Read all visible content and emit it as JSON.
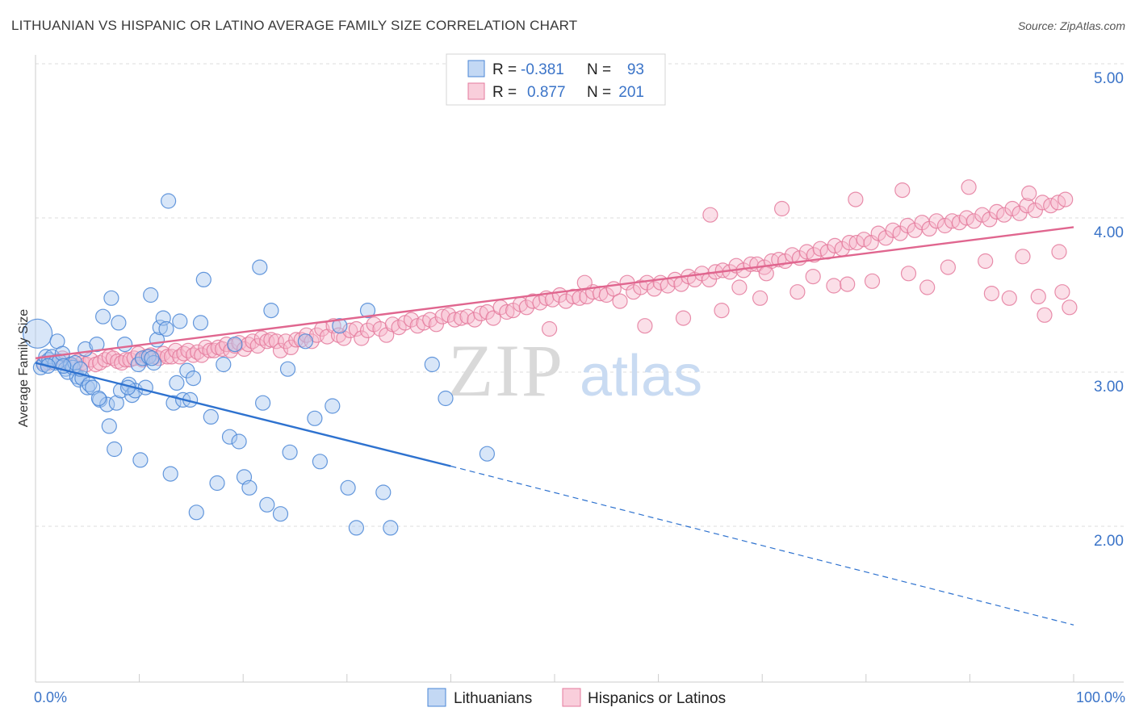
{
  "header": {
    "title": "LITHUANIAN VS HISPANIC OR LATINO AVERAGE FAMILY SIZE CORRELATION CHART",
    "source": "Source: ZipAtlas.com"
  },
  "watermark": {
    "zip": "ZIP",
    "atlas": "atlas"
  },
  "colors": {
    "blue_fill": "#a9c8ef",
    "blue_stroke": "#4a86d6",
    "blue_line": "#2e72cf",
    "pink_fill": "#f6b9cc",
    "pink_stroke": "#e47a9c",
    "pink_line": "#e0668f",
    "tick_text": "#3b74c8",
    "grid": "#dddddd"
  },
  "legend": {
    "rows": [
      {
        "r_label": "R =",
        "r_value": "-0.381",
        "n_label": "N =",
        "n_value": "93"
      },
      {
        "r_label": "R =",
        "r_value": "0.877",
        "n_label": "N =",
        "n_value": "201"
      }
    ]
  },
  "chart_data": {
    "type": "scatter",
    "ylabel": "Average Family Size",
    "xlim": [
      0,
      100
    ],
    "ylim": [
      1.05,
      5.1
    ],
    "x_tick_labels": [
      "0.0%",
      "100.0%"
    ],
    "y_ticks": [
      {
        "value": 2.0,
        "label": "2.00"
      },
      {
        "value": 3.0,
        "label": "3.00"
      },
      {
        "value": 4.0,
        "label": "4.00"
      },
      {
        "value": 5.0,
        "label": "5.00"
      }
    ],
    "grid": "horizontal dashed",
    "legend_position": "top-center",
    "series": [
      {
        "name": "Lithuanians",
        "color": "#4a86d6",
        "trend": {
          "x0": 0,
          "y0": 3.06,
          "x1": 40,
          "y1": 2.39,
          "dashed_to_x": 100,
          "dashed_to_y": 1.36
        },
        "points": [
          [
            0.2,
            3.25
          ],
          [
            0.5,
            3.03
          ],
          [
            0.8,
            3.05
          ],
          [
            1.0,
            3.1
          ],
          [
            1.3,
            3.08
          ],
          [
            1.6,
            3.1
          ],
          [
            1.9,
            3.06
          ],
          [
            2.1,
            3.2
          ],
          [
            2.3,
            3.07
          ],
          [
            2.6,
            3.12
          ],
          [
            2.9,
            3.02
          ],
          [
            3.1,
            3.0
          ],
          [
            3.4,
            3.05
          ],
          [
            3.6,
            3.03
          ],
          [
            3.8,
            3.06
          ],
          [
            4.0,
            2.97
          ],
          [
            4.2,
            2.95
          ],
          [
            4.5,
            2.96
          ],
          [
            4.8,
            3.15
          ],
          [
            5.0,
            2.9
          ],
          [
            5.2,
            2.92
          ],
          [
            5.5,
            2.9
          ],
          [
            5.9,
            3.18
          ],
          [
            6.2,
            2.82
          ],
          [
            6.5,
            3.36
          ],
          [
            6.9,
            2.79
          ],
          [
            7.1,
            2.65
          ],
          [
            7.3,
            3.48
          ],
          [
            7.6,
            2.5
          ],
          [
            7.8,
            2.8
          ],
          [
            8.0,
            3.32
          ],
          [
            8.2,
            2.88
          ],
          [
            8.6,
            3.18
          ],
          [
            9.0,
            2.92
          ],
          [
            9.3,
            2.85
          ],
          [
            9.6,
            2.88
          ],
          [
            9.9,
            3.05
          ],
          [
            10.1,
            2.43
          ],
          [
            10.3,
            3.09
          ],
          [
            10.6,
            2.9
          ],
          [
            10.9,
            3.1
          ],
          [
            11.1,
            3.5
          ],
          [
            11.4,
            3.06
          ],
          [
            11.7,
            3.21
          ],
          [
            12.0,
            3.29
          ],
          [
            12.3,
            3.35
          ],
          [
            12.6,
            3.28
          ],
          [
            12.8,
            4.11
          ],
          [
            13.0,
            2.34
          ],
          [
            13.3,
            2.8
          ],
          [
            13.6,
            2.93
          ],
          [
            13.9,
            3.33
          ],
          [
            14.2,
            2.82
          ],
          [
            14.6,
            3.01
          ],
          [
            14.9,
            2.82
          ],
          [
            15.2,
            2.96
          ],
          [
            15.5,
            2.09
          ],
          [
            15.9,
            3.32
          ],
          [
            16.2,
            3.6
          ],
          [
            16.9,
            2.71
          ],
          [
            17.5,
            2.28
          ],
          [
            18.1,
            3.05
          ],
          [
            18.7,
            2.58
          ],
          [
            19.2,
            3.18
          ],
          [
            19.6,
            2.55
          ],
          [
            20.1,
            2.32
          ],
          [
            20.6,
            2.25
          ],
          [
            21.6,
            3.68
          ],
          [
            21.9,
            2.8
          ],
          [
            22.3,
            2.14
          ],
          [
            22.7,
            3.4
          ],
          [
            23.6,
            2.08
          ],
          [
            24.5,
            2.48
          ],
          [
            26.0,
            3.2
          ],
          [
            26.9,
            2.7
          ],
          [
            27.4,
            2.42
          ],
          [
            28.6,
            2.78
          ],
          [
            29.3,
            3.3
          ],
          [
            30.1,
            2.25
          ],
          [
            30.9,
            1.99
          ],
          [
            32.0,
            3.4
          ],
          [
            33.5,
            2.22
          ],
          [
            34.2,
            1.99
          ],
          [
            38.2,
            3.05
          ],
          [
            39.5,
            2.83
          ],
          [
            43.5,
            2.47
          ],
          [
            24.3,
            3.02
          ],
          [
            2.7,
            3.04
          ],
          [
            1.2,
            3.04
          ],
          [
            4.3,
            3.02
          ],
          [
            6.1,
            2.83
          ],
          [
            8.9,
            2.9
          ],
          [
            11.2,
            3.09
          ]
        ]
      },
      {
        "name": "Hispanics or Latinos",
        "color": "#e47a9c",
        "trend": {
          "x0": 0,
          "y0": 3.09,
          "x1": 100,
          "y1": 3.94
        },
        "points": [
          [
            0.8,
            3.06
          ],
          [
            1.3,
            3.06
          ],
          [
            2.0,
            3.07
          ],
          [
            2.6,
            3.09
          ],
          [
            3.3,
            3.05
          ],
          [
            3.7,
            3.04
          ],
          [
            4.1,
            3.07
          ],
          [
            4.5,
            3.06
          ],
          [
            4.9,
            3.05
          ],
          [
            5.3,
            3.08
          ],
          [
            5.8,
            3.05
          ],
          [
            6.2,
            3.06
          ],
          [
            6.7,
            3.08
          ],
          [
            7.1,
            3.1
          ],
          [
            7.5,
            3.09
          ],
          [
            7.9,
            3.07
          ],
          [
            8.3,
            3.06
          ],
          [
            8.7,
            3.08
          ],
          [
            9.1,
            3.08
          ],
          [
            9.5,
            3.09
          ],
          [
            9.9,
            3.12
          ],
          [
            10.3,
            3.08
          ],
          [
            10.7,
            3.1
          ],
          [
            11.1,
            3.11
          ],
          [
            11.5,
            3.1
          ],
          [
            11.9,
            3.09
          ],
          [
            12.3,
            3.12
          ],
          [
            12.7,
            3.1
          ],
          [
            13.1,
            3.1
          ],
          [
            13.5,
            3.14
          ],
          [
            13.9,
            3.1
          ],
          [
            14.3,
            3.12
          ],
          [
            14.7,
            3.14
          ],
          [
            15.2,
            3.11
          ],
          [
            15.6,
            3.13
          ],
          [
            16.0,
            3.11
          ],
          [
            16.4,
            3.16
          ],
          [
            16.8,
            3.14
          ],
          [
            17.2,
            3.14
          ],
          [
            17.6,
            3.16
          ],
          [
            18.0,
            3.15
          ],
          [
            18.4,
            3.18
          ],
          [
            18.8,
            3.14
          ],
          [
            19.2,
            3.17
          ],
          [
            19.6,
            3.19
          ],
          [
            20.1,
            3.15
          ],
          [
            20.5,
            3.18
          ],
          [
            20.9,
            3.2
          ],
          [
            21.4,
            3.17
          ],
          [
            21.8,
            3.22
          ],
          [
            22.3,
            3.2
          ],
          [
            22.7,
            3.21
          ],
          [
            23.2,
            3.2
          ],
          [
            23.6,
            3.14
          ],
          [
            24.1,
            3.2
          ],
          [
            24.6,
            3.16
          ],
          [
            25.1,
            3.21
          ],
          [
            25.6,
            3.21
          ],
          [
            26.1,
            3.24
          ],
          [
            26.6,
            3.2
          ],
          [
            27.1,
            3.24
          ],
          [
            27.6,
            3.28
          ],
          [
            28.1,
            3.23
          ],
          [
            28.7,
            3.3
          ],
          [
            29.2,
            3.24
          ],
          [
            29.7,
            3.22
          ],
          [
            30.3,
            3.27
          ],
          [
            30.9,
            3.28
          ],
          [
            31.4,
            3.22
          ],
          [
            32.0,
            3.27
          ],
          [
            32.6,
            3.31
          ],
          [
            33.2,
            3.28
          ],
          [
            33.8,
            3.24
          ],
          [
            34.4,
            3.31
          ],
          [
            35.0,
            3.29
          ],
          [
            35.6,
            3.32
          ],
          [
            36.2,
            3.34
          ],
          [
            36.8,
            3.3
          ],
          [
            37.4,
            3.32
          ],
          [
            38.0,
            3.34
          ],
          [
            38.6,
            3.31
          ],
          [
            39.2,
            3.36
          ],
          [
            39.8,
            3.37
          ],
          [
            40.4,
            3.34
          ],
          [
            41.0,
            3.35
          ],
          [
            41.6,
            3.36
          ],
          [
            42.3,
            3.34
          ],
          [
            42.9,
            3.38
          ],
          [
            43.5,
            3.39
          ],
          [
            44.1,
            3.35
          ],
          [
            44.8,
            3.42
          ],
          [
            45.4,
            3.39
          ],
          [
            46.0,
            3.4
          ],
          [
            46.7,
            3.44
          ],
          [
            47.3,
            3.42
          ],
          [
            47.9,
            3.46
          ],
          [
            48.6,
            3.45
          ],
          [
            49.2,
            3.48
          ],
          [
            49.8,
            3.47
          ],
          [
            50.5,
            3.5
          ],
          [
            51.1,
            3.46
          ],
          [
            51.8,
            3.49
          ],
          [
            52.4,
            3.48
          ],
          [
            53.1,
            3.49
          ],
          [
            53.7,
            3.52
          ],
          [
            54.4,
            3.51
          ],
          [
            55.0,
            3.5
          ],
          [
            55.7,
            3.54
          ],
          [
            56.3,
            3.46
          ],
          [
            57.0,
            3.58
          ],
          [
            57.6,
            3.52
          ],
          [
            58.3,
            3.55
          ],
          [
            58.9,
            3.58
          ],
          [
            59.6,
            3.54
          ],
          [
            60.2,
            3.58
          ],
          [
            60.9,
            3.56
          ],
          [
            61.6,
            3.6
          ],
          [
            62.2,
            3.57
          ],
          [
            62.9,
            3.62
          ],
          [
            63.5,
            3.6
          ],
          [
            64.2,
            3.64
          ],
          [
            64.9,
            3.6
          ],
          [
            65.5,
            3.65
          ],
          [
            66.2,
            3.66
          ],
          [
            66.9,
            3.65
          ],
          [
            67.5,
            3.69
          ],
          [
            68.2,
            3.66
          ],
          [
            68.9,
            3.7
          ],
          [
            69.5,
            3.7
          ],
          [
            70.2,
            3.68
          ],
          [
            70.9,
            3.72
          ],
          [
            71.6,
            3.73
          ],
          [
            72.2,
            3.72
          ],
          [
            72.9,
            3.76
          ],
          [
            73.6,
            3.74
          ],
          [
            74.3,
            3.78
          ],
          [
            75.0,
            3.76
          ],
          [
            75.6,
            3.8
          ],
          [
            76.3,
            3.78
          ],
          [
            77.0,
            3.82
          ],
          [
            77.7,
            3.8
          ],
          [
            78.4,
            3.84
          ],
          [
            79.1,
            3.84
          ],
          [
            79.8,
            3.86
          ],
          [
            80.5,
            3.84
          ],
          [
            81.2,
            3.9
          ],
          [
            81.9,
            3.87
          ],
          [
            82.6,
            3.92
          ],
          [
            83.3,
            3.9
          ],
          [
            84.0,
            3.95
          ],
          [
            84.7,
            3.92
          ],
          [
            85.4,
            3.97
          ],
          [
            86.1,
            3.93
          ],
          [
            86.8,
            3.98
          ],
          [
            87.6,
            3.95
          ],
          [
            88.3,
            3.98
          ],
          [
            89.0,
            3.97
          ],
          [
            89.7,
            4.0
          ],
          [
            90.4,
            3.98
          ],
          [
            91.2,
            4.02
          ],
          [
            91.9,
            3.99
          ],
          [
            92.6,
            4.04
          ],
          [
            93.3,
            4.02
          ],
          [
            94.1,
            4.06
          ],
          [
            94.8,
            4.03
          ],
          [
            95.5,
            4.08
          ],
          [
            96.3,
            4.05
          ],
          [
            97.0,
            4.1
          ],
          [
            97.8,
            4.08
          ],
          [
            98.5,
            4.1
          ],
          [
            99.2,
            4.12
          ],
          [
            58.7,
            3.3
          ],
          [
            62.4,
            3.35
          ],
          [
            66.1,
            3.4
          ],
          [
            69.8,
            3.48
          ],
          [
            73.4,
            3.52
          ],
          [
            76.9,
            3.56
          ],
          [
            80.6,
            3.59
          ],
          [
            84.1,
            3.64
          ],
          [
            87.9,
            3.68
          ],
          [
            91.5,
            3.72
          ],
          [
            95.1,
            3.75
          ],
          [
            98.6,
            3.78
          ],
          [
            65.0,
            4.02
          ],
          [
            71.9,
            4.06
          ],
          [
            79.0,
            4.12
          ],
          [
            83.5,
            4.18
          ],
          [
            89.9,
            4.2
          ],
          [
            95.7,
            4.16
          ],
          [
            98.9,
            3.52
          ],
          [
            96.6,
            3.49
          ],
          [
            99.6,
            3.42
          ],
          [
            97.2,
            3.37
          ],
          [
            93.8,
            3.48
          ],
          [
            92.1,
            3.51
          ],
          [
            85.9,
            3.55
          ],
          [
            78.2,
            3.57
          ],
          [
            74.9,
            3.62
          ],
          [
            70.4,
            3.64
          ],
          [
            67.8,
            3.55
          ],
          [
            52.9,
            3.58
          ],
          [
            49.5,
            3.28
          ]
        ]
      }
    ]
  },
  "bottom_legend": {
    "items": [
      {
        "label": "Lithuanians"
      },
      {
        "label": "Hispanics or Latinos"
      }
    ]
  }
}
